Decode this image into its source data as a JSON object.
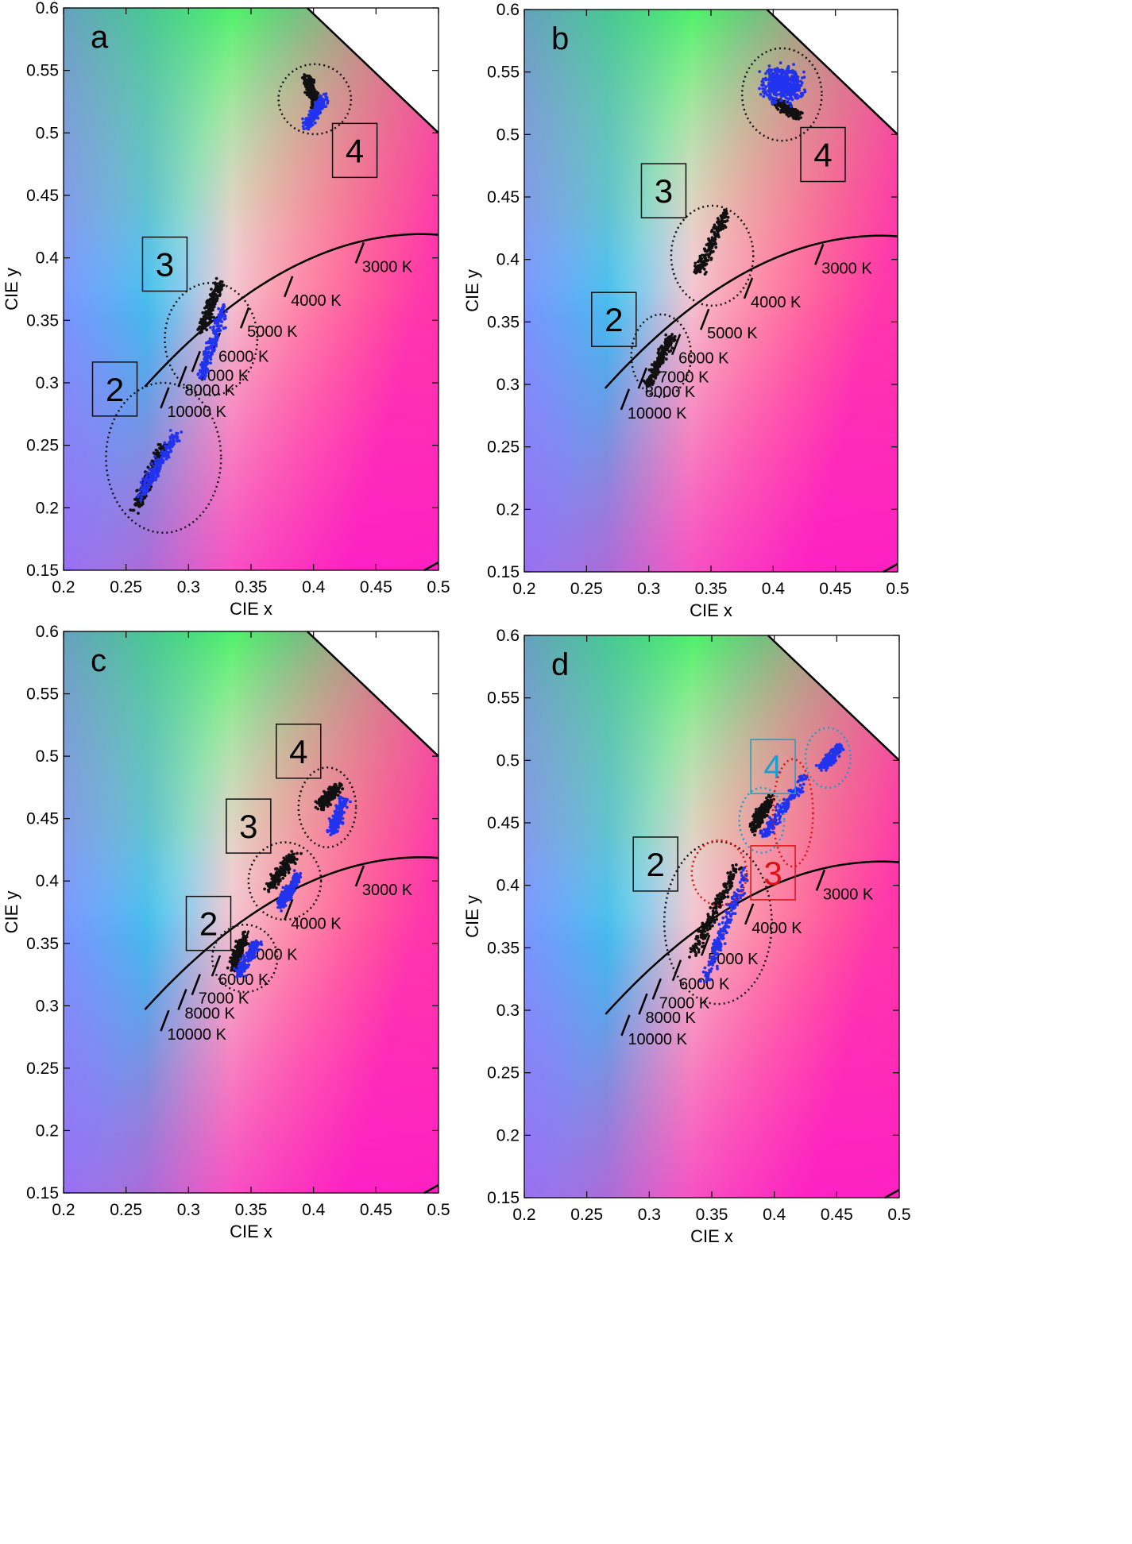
{
  "figure": {
    "xlabel": "CIE x",
    "ylabel": "CIE y",
    "xticks": [
      "0.2",
      "0.25",
      "0.3",
      "0.35",
      "0.4",
      "0.45",
      "0.5"
    ],
    "yticks": [
      "0.15",
      "0.2",
      "0.25",
      "0.3",
      "0.35",
      "0.4",
      "0.45",
      "0.5",
      "0.55",
      "0.6"
    ],
    "colors": {
      "series_a": "#111111",
      "series_b": "#2233ee",
      "axis": "#000000",
      "cluster_ring": "#111111",
      "red_ring": "#dd1111",
      "cyan_ring": "#1a9fd0"
    }
  },
  "chart_data": [
    {
      "panel": "a",
      "type": "scatter",
      "xlabel": "CIE x",
      "ylabel": "CIE y",
      "xlim": [
        0.2,
        0.5
      ],
      "ylim": [
        0.15,
        0.6
      ],
      "grid": false,
      "planckian_ticks": [
        {
          "label": "3000 K",
          "x": 0.437,
          "y": 0.404
        },
        {
          "label": "4000 K",
          "x": 0.38,
          "y": 0.377
        },
        {
          "label": "5000 K",
          "x": 0.345,
          "y": 0.352
        },
        {
          "label": "6000 K",
          "x": 0.322,
          "y": 0.332
        },
        {
          "label": "7000 K",
          "x": 0.306,
          "y": 0.317
        },
        {
          "label": "8000 K",
          "x": 0.295,
          "y": 0.305
        },
        {
          "label": "10000 K",
          "x": 0.281,
          "y": 0.288
        }
      ],
      "series": [
        {
          "color": "#111111",
          "segments": [
            [
              0.258,
              0.2,
              0.281,
              0.252
            ],
            [
              0.31,
              0.343,
              0.325,
              0.38
            ],
            [
              0.395,
              0.545,
              0.403,
              0.52
            ]
          ]
        },
        {
          "color": "#2233ee",
          "segments": [
            [
              0.262,
              0.21,
              0.29,
              0.258
            ],
            [
              0.31,
              0.305,
              0.328,
              0.36
            ],
            [
              0.394,
              0.505,
              0.409,
              0.528
            ]
          ]
        }
      ],
      "clusters": [
        {
          "label": "2",
          "cx": 0.28,
          "cy": 0.24,
          "rx": 0.046,
          "ry": 0.06,
          "ring": "black",
          "box_x": 0.241,
          "box_y": 0.295,
          "box_color": "black"
        },
        {
          "label": "3",
          "cx": 0.318,
          "cy": 0.335,
          "rx": 0.037,
          "ry": 0.045,
          "ring": "black",
          "box_x": 0.281,
          "box_y": 0.395,
          "box_color": "black"
        },
        {
          "label": "4",
          "cx": 0.401,
          "cy": 0.527,
          "rx": 0.029,
          "ry": 0.028,
          "ring": "black",
          "box_x": 0.433,
          "box_y": 0.486,
          "box_color": "black"
        }
      ]
    },
    {
      "panel": "b",
      "type": "scatter",
      "xlabel": "CIE x",
      "ylabel": "CIE y",
      "xlim": [
        0.2,
        0.5
      ],
      "ylim": [
        0.15,
        0.6
      ],
      "grid": false,
      "planckian_ticks": [
        {
          "label": "3000 K",
          "x": 0.437,
          "y": 0.404
        },
        {
          "label": "4000 K",
          "x": 0.38,
          "y": 0.377
        },
        {
          "label": "5000 K",
          "x": 0.345,
          "y": 0.352
        },
        {
          "label": "6000 K",
          "x": 0.322,
          "y": 0.332
        },
        {
          "label": "7000 K",
          "x": 0.306,
          "y": 0.317
        },
        {
          "label": "8000 K",
          "x": 0.295,
          "y": 0.305
        },
        {
          "label": "10000 K",
          "x": 0.281,
          "y": 0.288
        }
      ],
      "series": [
        {
          "color": "#111111",
          "segments": [
            [
              0.3,
              0.3,
              0.318,
              0.338
            ],
            [
              0.34,
              0.39,
              0.362,
              0.438
            ],
            [
              0.403,
              0.525,
              0.42,
              0.515
            ]
          ]
        },
        {
          "color": "#2233ee",
          "blob": {
            "cx": 0.408,
            "cy": 0.54,
            "rx": 0.016,
            "ry": 0.014
          }
        }
      ],
      "clusters": [
        {
          "label": "2",
          "cx": 0.31,
          "cy": 0.323,
          "rx": 0.024,
          "ry": 0.033,
          "ring": "black",
          "box_x": 0.272,
          "box_y": 0.352,
          "box_color": "black"
        },
        {
          "label": "3",
          "cx": 0.351,
          "cy": 0.403,
          "rx": 0.033,
          "ry": 0.04,
          "ring": "black",
          "box_x": 0.312,
          "box_y": 0.455,
          "box_color": "black"
        },
        {
          "label": "4",
          "cx": 0.407,
          "cy": 0.532,
          "rx": 0.032,
          "ry": 0.037,
          "ring": "black",
          "box_x": 0.44,
          "box_y": 0.484,
          "box_color": "black"
        }
      ]
    },
    {
      "panel": "c",
      "type": "scatter",
      "xlabel": "CIE x",
      "ylabel": "CIE y",
      "xlim": [
        0.2,
        0.5
      ],
      "ylim": [
        0.15,
        0.6
      ],
      "grid": false,
      "planckian_ticks": [
        {
          "label": "3000 K",
          "x": 0.437,
          "y": 0.404
        },
        {
          "label": "4000 K",
          "x": 0.38,
          "y": 0.377
        },
        {
          "label": "5000 K",
          "x": 0.345,
          "y": 0.352
        },
        {
          "label": "6000 K",
          "x": 0.322,
          "y": 0.332
        },
        {
          "label": "7000 K",
          "x": 0.306,
          "y": 0.317
        },
        {
          "label": "8000 K",
          "x": 0.295,
          "y": 0.305
        },
        {
          "label": "10000 K",
          "x": 0.281,
          "y": 0.288
        }
      ],
      "series": [
        {
          "color": "#111111",
          "segments": [
            [
              0.335,
              0.33,
              0.345,
              0.355
            ],
            [
              0.365,
              0.395,
              0.385,
              0.422
            ],
            [
              0.405,
              0.46,
              0.42,
              0.475
            ]
          ]
        },
        {
          "color": "#2233ee",
          "segments": [
            [
              0.34,
              0.325,
              0.355,
              0.35
            ],
            [
              0.373,
              0.38,
              0.388,
              0.405
            ],
            [
              0.415,
              0.44,
              0.425,
              0.465
            ]
          ]
        }
      ],
      "clusters": [
        {
          "label": "2",
          "cx": 0.345,
          "cy": 0.338,
          "rx": 0.026,
          "ry": 0.027,
          "ring": "black",
          "box_x": 0.316,
          "box_y": 0.366,
          "box_color": "black"
        },
        {
          "label": "3",
          "cx": 0.377,
          "cy": 0.4,
          "rx": 0.029,
          "ry": 0.031,
          "ring": "black",
          "box_x": 0.348,
          "box_y": 0.444,
          "box_color": "black"
        },
        {
          "label": "4",
          "cx": 0.411,
          "cy": 0.459,
          "rx": 0.023,
          "ry": 0.032,
          "ring": "black",
          "box_x": 0.388,
          "box_y": 0.504,
          "box_color": "black"
        }
      ]
    },
    {
      "panel": "d",
      "type": "scatter",
      "xlabel": "CIE x",
      "ylabel": "CIE y",
      "xlim": [
        0.2,
        0.5
      ],
      "ylim": [
        0.15,
        0.6
      ],
      "grid": false,
      "planckian_ticks": [
        {
          "label": "3000 K",
          "x": 0.437,
          "y": 0.404
        },
        {
          "label": "4000 K",
          "x": 0.38,
          "y": 0.377
        },
        {
          "label": "5000 K",
          "x": 0.345,
          "y": 0.352
        },
        {
          "label": "6000 K",
          "x": 0.322,
          "y": 0.332
        },
        {
          "label": "7000 K",
          "x": 0.306,
          "y": 0.317
        },
        {
          "label": "8000 K",
          "x": 0.295,
          "y": 0.305
        },
        {
          "label": "10000 K",
          "x": 0.281,
          "y": 0.288
        }
      ],
      "series": [
        {
          "color": "#111111",
          "segments": [
            [
              0.335,
              0.345,
              0.37,
              0.415
            ],
            [
              0.383,
              0.445,
              0.397,
              0.47
            ]
          ]
        },
        {
          "color": "#2233ee",
          "segments": [
            [
              0.345,
              0.325,
              0.377,
              0.41
            ],
            [
              0.392,
              0.44,
              0.424,
              0.485
            ],
            [
              0.439,
              0.495,
              0.452,
              0.51
            ]
          ]
        }
      ],
      "clusters": [
        {
          "label": "2",
          "cx": 0.355,
          "cy": 0.37,
          "rx": 0.043,
          "ry": 0.065,
          "ring": "black",
          "box_x": 0.305,
          "box_y": 0.417,
          "box_color": "black"
        },
        {
          "label": "3",
          "cx": 0.356,
          "cy": 0.41,
          "rx": 0.022,
          "ry": 0.026,
          "ring": "red",
          "box_x": 0.399,
          "box_y": 0.41,
          "box_color": "red"
        },
        {
          "label": "4",
          "cx": 0.39,
          "cy": 0.452,
          "rx": 0.018,
          "ry": 0.026,
          "ring": "cyan",
          "box_x": 0.399,
          "box_y": 0.495,
          "box_color": "cyan"
        }
      ],
      "extra_rings": [
        {
          "cx": 0.415,
          "cy": 0.458,
          "rx": 0.016,
          "ry": 0.043,
          "ring": "red"
        },
        {
          "cx": 0.443,
          "cy": 0.502,
          "rx": 0.018,
          "ry": 0.024,
          "ring": "cyan"
        }
      ]
    }
  ]
}
